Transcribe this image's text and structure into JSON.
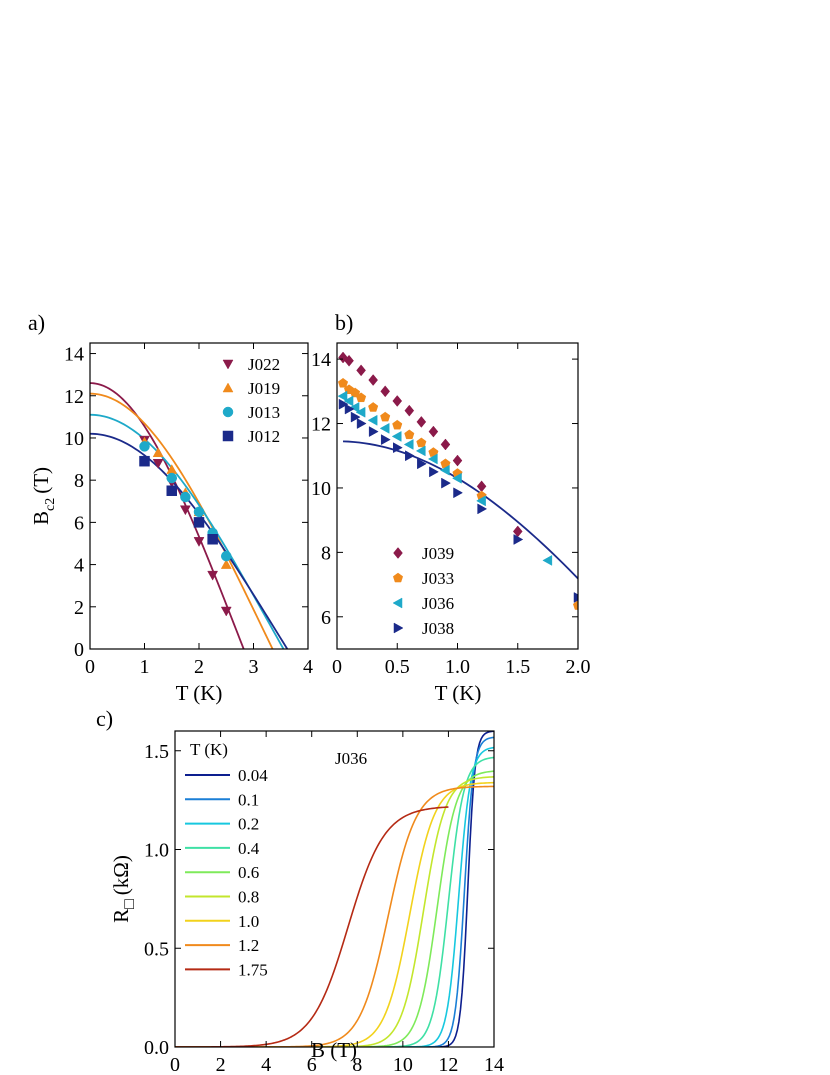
{
  "chart_data": [
    {
      "panel": "a)",
      "type": "scatter",
      "xlabel": "T (K)",
      "ylabel": "B_c2 (T)",
      "ylabel_main": "B",
      "ylabel_sub": "c2",
      "ylabel_unit": "(T)",
      "xlim": [
        0,
        4
      ],
      "ylim": [
        0,
        14.5
      ],
      "xticks": [
        0,
        1,
        2,
        3,
        4
      ],
      "yticks": [
        0,
        2,
        4,
        6,
        8,
        10,
        12,
        14
      ],
      "legend_position": "top-right",
      "series": [
        {
          "name": "J022",
          "marker": "triangle-down",
          "color": "#8b1a4a",
          "x": [
            1.0,
            1.25,
            1.5,
            1.75,
            2.0,
            2.25,
            2.5
          ],
          "y": [
            9.9,
            8.8,
            7.9,
            6.6,
            5.1,
            3.5,
            1.8
          ],
          "fit": {
            "Tc": 2.82,
            "B0": 12.6
          }
        },
        {
          "name": "J019",
          "marker": "triangle-up",
          "color": "#f08a1c",
          "x": [
            1.0,
            1.25,
            1.5,
            1.75,
            2.0,
            2.25,
            2.5
          ],
          "y": [
            9.8,
            9.3,
            8.5,
            7.4,
            6.5,
            5.3,
            4.0
          ],
          "fit": {
            "Tc": 3.35,
            "B0": 12.1
          }
        },
        {
          "name": "J013",
          "marker": "circle",
          "color": "#1ea9c9",
          "x": [
            1.0,
            1.5,
            1.75,
            2.0,
            2.25,
            2.5
          ],
          "y": [
            9.6,
            8.1,
            7.2,
            6.5,
            5.5,
            4.4
          ],
          "fit": {
            "Tc": 3.55,
            "B0": 11.1
          }
        },
        {
          "name": "J012",
          "marker": "square",
          "color": "#1b2a8a",
          "x": [
            1.0,
            1.5,
            2.0,
            2.25
          ],
          "y": [
            8.9,
            7.5,
            6.0,
            5.2
          ],
          "fit": {
            "Tc": 3.62,
            "B0": 10.2
          }
        }
      ]
    },
    {
      "panel": "b)",
      "type": "scatter",
      "xlabel": "T (K)",
      "ylabel": "",
      "xlim": [
        0,
        2.0
      ],
      "ylim": [
        5,
        14.5
      ],
      "xticks": [
        0,
        0.5,
        1.0,
        1.5,
        2.0
      ],
      "xtick_labels": [
        "0",
        "0.5",
        "1.0",
        "1.5",
        "2.0"
      ],
      "yticks": [
        6,
        8,
        10,
        12,
        14
      ],
      "legend_position": "bottom-left",
      "series": [
        {
          "name": "J039",
          "marker": "diamond",
          "color": "#8b1a4a",
          "x": [
            0.05,
            0.1,
            0.2,
            0.3,
            0.4,
            0.5,
            0.6,
            0.7,
            0.8,
            0.9,
            1.0,
            1.2,
            1.5
          ],
          "y": [
            14.05,
            13.95,
            13.65,
            13.35,
            13.0,
            12.7,
            12.4,
            12.05,
            11.75,
            11.35,
            10.85,
            10.05,
            8.65
          ]
        },
        {
          "name": "J033",
          "marker": "pentagon",
          "color": "#f08a1c",
          "x": [
            0.05,
            0.1,
            0.15,
            0.2,
            0.3,
            0.4,
            0.5,
            0.6,
            0.7,
            0.8,
            0.9,
            1.0,
            1.2,
            2.0
          ],
          "y": [
            13.25,
            13.05,
            12.95,
            12.8,
            12.5,
            12.2,
            11.95,
            11.65,
            11.4,
            11.1,
            10.75,
            10.45,
            9.75,
            6.35
          ]
        },
        {
          "name": "J036",
          "marker": "triangle-left",
          "color": "#1ea9c9",
          "x": [
            0.05,
            0.1,
            0.15,
            0.2,
            0.3,
            0.4,
            0.5,
            0.6,
            0.7,
            0.8,
            0.9,
            1.0,
            1.2,
            1.75
          ],
          "y": [
            12.85,
            12.7,
            12.5,
            12.35,
            12.1,
            11.85,
            11.6,
            11.35,
            11.15,
            10.9,
            10.55,
            10.3,
            9.6,
            7.75
          ]
        },
        {
          "name": "J038",
          "marker": "triangle-right",
          "color": "#1b2a8a",
          "x": [
            0.05,
            0.1,
            0.15,
            0.2,
            0.3,
            0.4,
            0.5,
            0.6,
            0.7,
            0.8,
            0.9,
            1.0,
            1.2,
            1.5,
            2.0
          ],
          "y": [
            12.6,
            12.45,
            12.2,
            12.0,
            11.75,
            11.5,
            11.25,
            11.0,
            10.75,
            10.5,
            10.15,
            9.85,
            9.35,
            8.4,
            6.6
          ]
        }
      ],
      "fit": {
        "color": "#1b2a8a",
        "Tc": 3.62,
        "B0": 11.45
      }
    },
    {
      "panel": "c)",
      "type": "line",
      "xlabel": "B (T)",
      "ylabel": "R_□ (kΩ)",
      "ylabel_main": "R",
      "ylabel_sub": "□",
      "ylabel_unit": "(kΩ)",
      "annotation": "J036",
      "legend_title": "T (K)",
      "legend_position": "top-left",
      "xlim": [
        0,
        14
      ],
      "ylim": [
        0,
        1.6
      ],
      "xticks": [
        0,
        2,
        4,
        6,
        8,
        10,
        12,
        14
      ],
      "yticks": [
        0.0,
        0.5,
        1.0,
        1.5
      ],
      "ytick_labels": [
        "0.0",
        "0.5",
        "1.0",
        "1.5"
      ],
      "series": [
        {
          "name": "0.04",
          "color": "#0d1f8f",
          "midpoint": 12.85,
          "width": 0.16,
          "r_max": 1.6
        },
        {
          "name": "0.1",
          "color": "#1a7fd6",
          "midpoint": 12.7,
          "width": 0.2,
          "r_max": 1.57
        },
        {
          "name": "0.2",
          "color": "#17c8df",
          "midpoint": 12.45,
          "width": 0.26,
          "r_max": 1.52
        },
        {
          "name": "0.4",
          "color": "#3fe0a5",
          "midpoint": 12.0,
          "width": 0.34,
          "r_max": 1.47
        },
        {
          "name": "0.6",
          "color": "#7eea5a",
          "midpoint": 11.5,
          "width": 0.42,
          "r_max": 1.4
        },
        {
          "name": "0.8",
          "color": "#c3e62c",
          "midpoint": 10.9,
          "width": 0.48,
          "r_max": 1.37
        },
        {
          "name": "1.0",
          "color": "#f2d21c",
          "midpoint": 10.3,
          "width": 0.55,
          "r_max": 1.34
        },
        {
          "name": "1.2",
          "color": "#f08a1c",
          "midpoint": 9.35,
          "width": 0.62,
          "r_max": 1.32
        },
        {
          "name": "1.75",
          "color": "#b52a14",
          "midpoint": 7.6,
          "width": 0.8,
          "r_max": 1.22,
          "x_end": 12.0
        }
      ]
    }
  ]
}
